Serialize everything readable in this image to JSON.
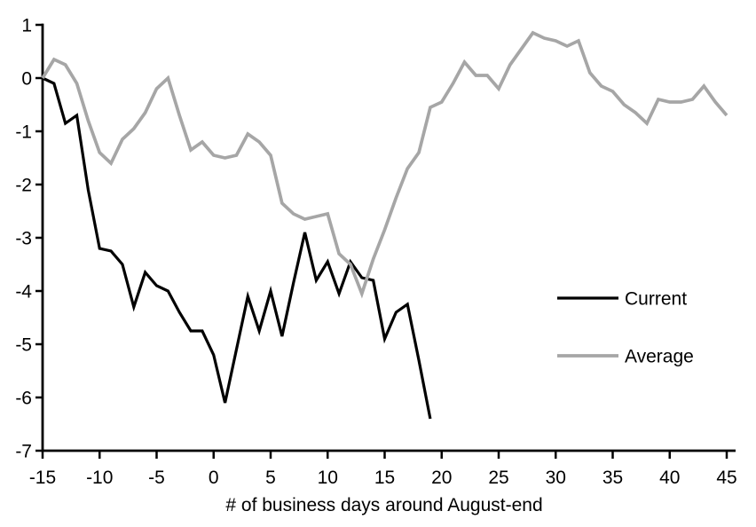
{
  "chart_data": {
    "type": "line",
    "title": "",
    "xlabel": "# of business days around August-end",
    "ylabel": "",
    "xlim": [
      -15,
      45
    ],
    "ylim": [
      -7,
      1
    ],
    "grid": false,
    "background": "#ffffff",
    "axis_color": "#000000",
    "x_ticks": [
      -15,
      -10,
      -5,
      0,
      5,
      10,
      15,
      20,
      25,
      30,
      35,
      40,
      45
    ],
    "x_tick_labels": [
      "-15",
      "-10",
      "-5",
      "0",
      "5",
      "10",
      "15",
      "20",
      "25",
      "30",
      "35",
      "40",
      "45"
    ],
    "y_ticks": [
      1,
      0,
      -1,
      -2,
      -3,
      -4,
      -5,
      -6,
      -7
    ],
    "y_tick_labels": [
      "1",
      "0",
      "-1",
      "-2",
      "-3",
      "-4",
      "-5",
      "-6",
      "-7"
    ],
    "legend_position": "right-middle",
    "series": [
      {
        "name": "Current",
        "color": "#000000",
        "line_width": 3.2,
        "x_start": -15,
        "x_step": 1,
        "x_end": 19,
        "y": [
          0,
          -0.1,
          -0.85,
          -0.7,
          -2.1,
          -3.2,
          -3.25,
          -3.5,
          -4.3,
          -3.65,
          -3.9,
          -4.0,
          -4.4,
          -4.75,
          -4.75,
          -5.2,
          -6.1,
          -5.1,
          -4.1,
          -4.75,
          -4.0,
          -4.85,
          -3.85,
          -2.9,
          -3.8,
          -3.45,
          -4.05,
          -3.45,
          -3.75,
          -3.8,
          -4.9,
          -4.4,
          -4.25,
          -5.3,
          -6.4
        ]
      },
      {
        "name": "Average",
        "color": "#a6a6a6",
        "line_width": 3.7,
        "x_start": -15,
        "x_step": 1,
        "x_end": 45,
        "y": [
          0,
          0.35,
          0.25,
          -0.1,
          -0.8,
          -1.4,
          -1.6,
          -1.15,
          -0.95,
          -0.65,
          -0.2,
          0.0,
          -0.7,
          -1.35,
          -1.2,
          -1.45,
          -1.5,
          -1.45,
          -1.05,
          -1.2,
          -1.45,
          -2.35,
          -2.55,
          -2.65,
          -2.6,
          -2.55,
          -3.3,
          -3.5,
          -4.05,
          -3.4,
          -2.85,
          -2.25,
          -1.7,
          -1.4,
          -0.55,
          -0.45,
          -0.1,
          0.3,
          0.05,
          0.05,
          -0.2,
          0.25,
          0.55,
          0.85,
          0.75,
          0.7,
          0.6,
          0.7,
          0.1,
          -0.15,
          -0.25,
          -0.5,
          -0.65,
          -0.85,
          -0.4,
          -0.45,
          -0.45,
          -0.4,
          -0.15,
          -0.45,
          -0.7
        ]
      }
    ]
  }
}
